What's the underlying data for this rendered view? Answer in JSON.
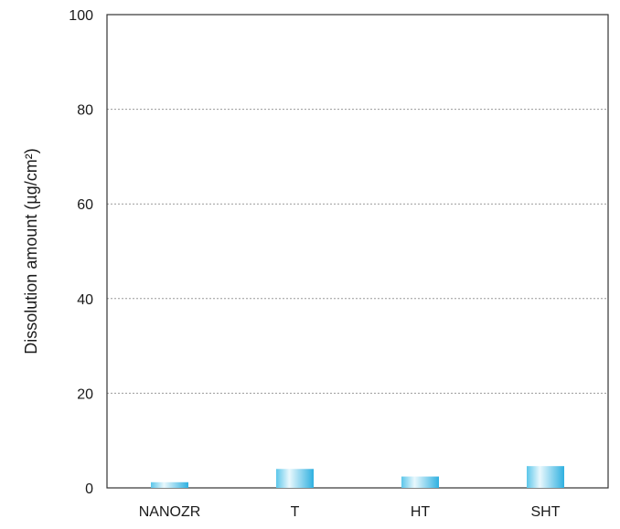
{
  "chart_data": {
    "type": "bar",
    "title": "",
    "xlabel": "",
    "ylabel": "Dissolution amount (µg/cm²)",
    "categories": [
      "NANOZR",
      "T",
      "HT",
      "SHT"
    ],
    "values": [
      1.2,
      4.0,
      2.4,
      4.6
    ],
    "ylim": [
      0,
      100
    ],
    "yticks": [
      0,
      20,
      40,
      60,
      80,
      100
    ],
    "ytick_labels": [
      "0",
      "20",
      "40",
      "60",
      "80",
      "100"
    ],
    "grid": true,
    "bar_colors": {
      "edge_dark": "#5bc6ea",
      "center_light": "#e9f8fd",
      "right_mid": "#2fb0e0"
    }
  }
}
